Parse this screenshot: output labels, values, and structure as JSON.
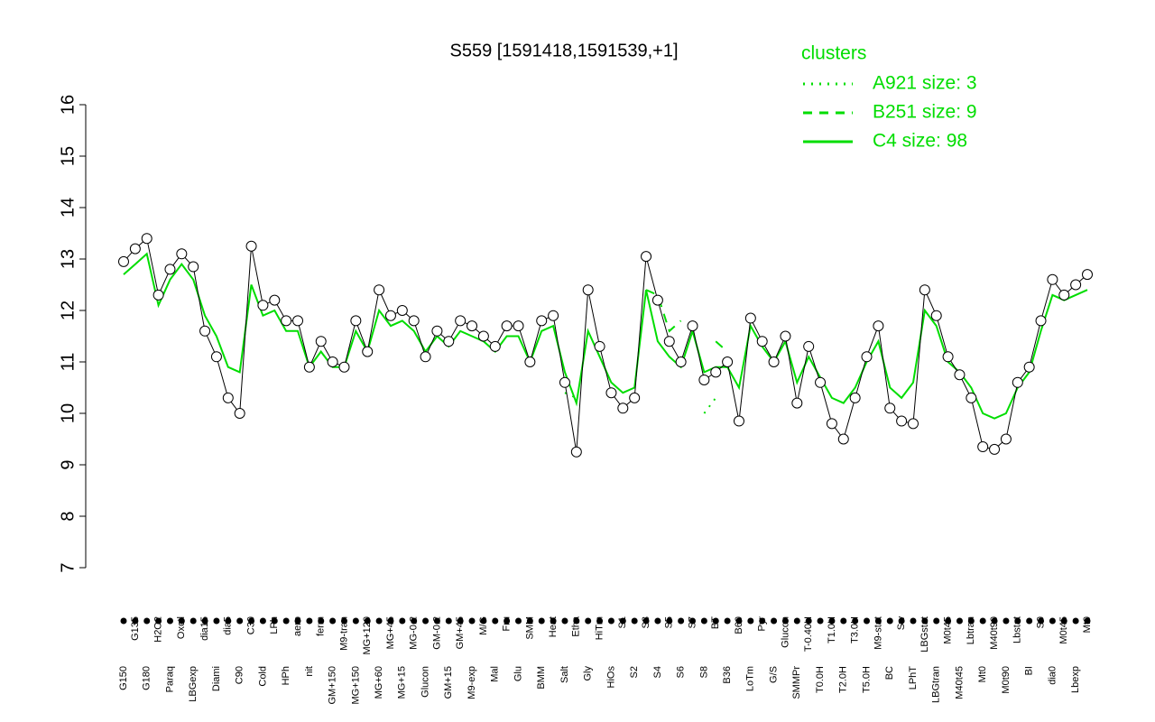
{
  "chart_data": {
    "type": "line",
    "title": "S559 [1591418,1591539,+1]",
    "legend_title": "clusters",
    "categories": [
      "G150",
      "G135",
      "G180",
      "H2O2",
      "Paraq",
      "Oxctl",
      "LBGexp",
      "dia15",
      "Diami",
      "dia5",
      "C90",
      "C30",
      "Cold",
      "LPh",
      "HPh",
      "aero",
      "nit",
      "ferm",
      "GM+150",
      "M9-tran",
      "MG+150",
      "MG+120",
      "MG+60",
      "MG+45",
      "MG+15",
      "MG-0.2",
      "Glucon",
      "GM-0.2",
      "GM+15",
      "GM+45",
      "M9-exp",
      "M/G",
      "Mal",
      "Fru",
      "Glu",
      "SMM",
      "BMM",
      "Heat",
      "Salt",
      "Etha",
      "Gly",
      "HiTm",
      "HiOs",
      "S1",
      "S2",
      "S3",
      "S4",
      "S5",
      "S6",
      "S7",
      "S8",
      "BT",
      "B36",
      "B60",
      "LoTm",
      "Pyr",
      "G/S",
      "Glucon",
      "SMMPr",
      "T-0.40H",
      "T0.0H",
      "T1.0H",
      "T2.0H",
      "T3.0H",
      "T5.0H",
      "M9-stat",
      "BC",
      "Sw",
      "LPhT",
      "LBGstat",
      "LBGtran",
      "M0t45",
      "M40t45",
      "Lbtran",
      "Mt0",
      "M40t90",
      "M0t90",
      "Lbstat",
      "BI",
      "S0",
      "dia0",
      "M0t45",
      "Lbexp",
      "Mt0"
    ],
    "values": [
      12.95,
      13.2,
      13.4,
      12.3,
      12.8,
      13.1,
      12.85,
      11.6,
      11.1,
      10.3,
      10.0,
      13.25,
      12.1,
      12.2,
      11.8,
      11.8,
      10.9,
      11.4,
      11.0,
      10.9,
      11.8,
      11.2,
      12.4,
      11.9,
      12.0,
      11.8,
      11.1,
      11.6,
      11.4,
      11.8,
      11.7,
      11.5,
      11.3,
      11.7,
      11.7,
      11.0,
      11.8,
      11.9,
      10.6,
      9.25,
      12.4,
      11.3,
      10.4,
      10.1,
      10.3,
      13.05,
      12.2,
      11.4,
      11.0,
      11.7,
      10.65,
      10.8,
      11.0,
      9.85,
      11.85,
      11.4,
      11.0,
      11.5,
      10.2,
      11.3,
      10.6,
      9.8,
      9.5,
      10.3,
      11.1,
      11.7,
      10.1,
      9.85,
      9.8,
      12.4,
      11.9,
      11.1,
      10.75,
      10.3,
      9.35,
      9.3,
      9.5,
      10.6,
      10.9,
      11.8,
      12.6,
      12.3,
      12.5,
      12.7
    ],
    "point_color": "#000000",
    "series": [
      {
        "name": "A921 size: 3",
        "color": "#00dd00",
        "dash": "dotted",
        "values": [
          null,
          null,
          null,
          null,
          null,
          null,
          null,
          null,
          null,
          null,
          null,
          null,
          null,
          null,
          null,
          null,
          null,
          null,
          null,
          null,
          null,
          null,
          null,
          null,
          null,
          null,
          null,
          null,
          null,
          null,
          null,
          null,
          null,
          null,
          null,
          null,
          null,
          null,
          10.4,
          10.3,
          null,
          null,
          null,
          null,
          null,
          null,
          null,
          null,
          null,
          null,
          10.0,
          10.3,
          null,
          null,
          null,
          null,
          null,
          null,
          null,
          null,
          null,
          null,
          null,
          null,
          null,
          null,
          null,
          null,
          null,
          null,
          null,
          null,
          null,
          null,
          null,
          null,
          null,
          null,
          null,
          null,
          null,
          null,
          null,
          null
        ]
      },
      {
        "name": "B251 size: 9",
        "color": "#00dd00",
        "dash": "dashed",
        "values": [
          null,
          null,
          null,
          null,
          null,
          null,
          null,
          null,
          null,
          null,
          null,
          null,
          null,
          null,
          null,
          null,
          null,
          null,
          null,
          null,
          null,
          null,
          null,
          null,
          null,
          null,
          null,
          null,
          null,
          null,
          null,
          null,
          null,
          null,
          null,
          null,
          null,
          null,
          null,
          null,
          null,
          null,
          null,
          null,
          null,
          12.4,
          12.3,
          11.6,
          11.8,
          null,
          null,
          11.4,
          11.2,
          null,
          null,
          null,
          null,
          null,
          null,
          null,
          null,
          null,
          null,
          null,
          null,
          null,
          null,
          null,
          null,
          null,
          null,
          null,
          null,
          null,
          null,
          null,
          null,
          null,
          null,
          null,
          null,
          null,
          null,
          null
        ]
      },
      {
        "name": "C4 size: 98",
        "color": "#00dd00",
        "dash": "solid",
        "values": [
          12.7,
          12.9,
          13.1,
          12.1,
          12.6,
          12.9,
          12.6,
          11.9,
          11.5,
          10.9,
          10.8,
          12.5,
          11.9,
          12.0,
          11.6,
          11.6,
          10.9,
          11.2,
          10.9,
          10.9,
          11.6,
          11.2,
          12.0,
          11.7,
          11.8,
          11.6,
          11.2,
          11.5,
          11.3,
          11.6,
          11.5,
          11.4,
          11.2,
          11.5,
          11.5,
          11.0,
          11.6,
          11.7,
          10.8,
          10.2,
          11.6,
          11.1,
          10.6,
          10.4,
          10.5,
          12.4,
          11.4,
          11.1,
          10.9,
          11.6,
          10.8,
          10.9,
          10.9,
          10.5,
          11.7,
          11.3,
          11.0,
          11.4,
          10.6,
          11.1,
          10.7,
          10.3,
          10.2,
          10.5,
          11.0,
          11.4,
          10.5,
          10.3,
          10.6,
          12.0,
          11.7,
          11.0,
          10.8,
          10.5,
          10.0,
          9.9,
          10.0,
          10.5,
          10.8,
          11.6,
          12.3,
          12.2,
          12.3,
          12.4
        ]
      }
    ],
    "ylim": [
      7,
      16
    ],
    "yticks": [
      7,
      8,
      9,
      10,
      11,
      12,
      13,
      14,
      15,
      16
    ]
  }
}
